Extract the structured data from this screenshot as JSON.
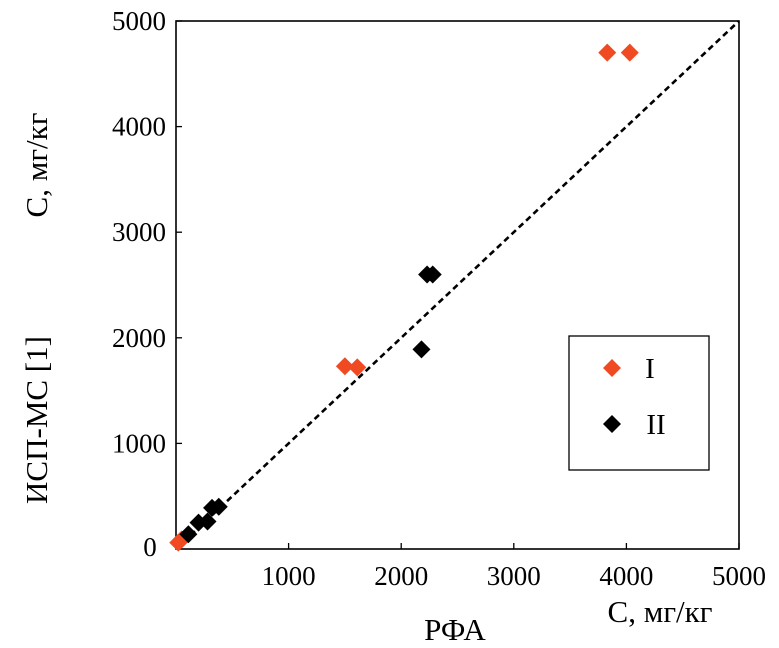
{
  "chart_data": {
    "type": "scatter",
    "title": "",
    "xlabel": "РФА",
    "xunit": "С, мг/кг",
    "ylabel": "ИСП-МС [1]",
    "yunit": "С, мг/кг",
    "xlim": [
      0,
      5000
    ],
    "ylim": [
      0,
      5000
    ],
    "x_ticks": [
      "1000",
      "2000",
      "3000",
      "4000",
      "5000"
    ],
    "y_ticks": [
      "1000",
      "2000",
      "3000",
      "4000",
      "5000"
    ],
    "origin_label": "0",
    "grid": false,
    "legend_position": "right-center",
    "reference_line": {
      "style": "dashed",
      "x": [
        0,
        5000
      ],
      "y": [
        0,
        5000
      ]
    },
    "series": [
      {
        "name": "I",
        "color": "#f04a23",
        "marker": "diamond",
        "points": [
          {
            "x": 20,
            "y": 60
          },
          {
            "x": 50,
            "y": 90
          },
          {
            "x": 1500,
            "y": 1730
          },
          {
            "x": 1610,
            "y": 1720
          },
          {
            "x": 3830,
            "y": 4700
          },
          {
            "x": 4030,
            "y": 4700
          }
        ]
      },
      {
        "name": "II",
        "color": "#000000",
        "marker": "diamond",
        "points": [
          {
            "x": 110,
            "y": 140
          },
          {
            "x": 200,
            "y": 250
          },
          {
            "x": 280,
            "y": 260
          },
          {
            "x": 320,
            "y": 390
          },
          {
            "x": 380,
            "y": 400
          },
          {
            "x": 2180,
            "y": 1890
          },
          {
            "x": 2230,
            "y": 2600
          },
          {
            "x": 2280,
            "y": 2600
          }
        ]
      }
    ]
  }
}
